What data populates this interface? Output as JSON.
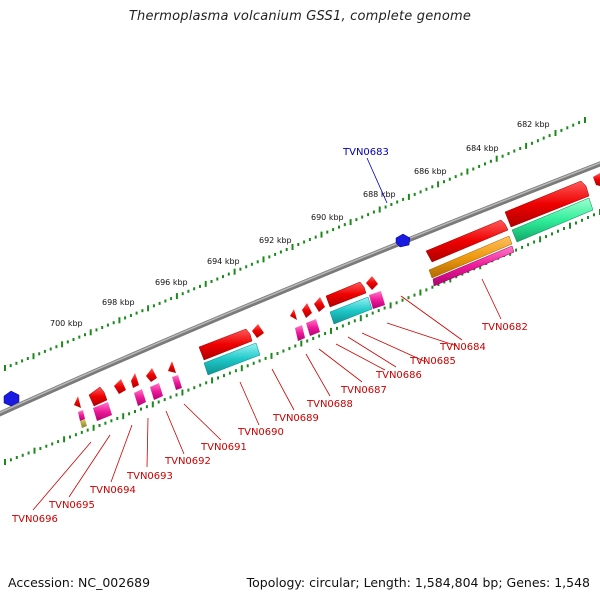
{
  "title": "Thermoplasma volcanium GSS1, complete genome",
  "footer": {
    "accession": "Accession: NC_002689",
    "summary": "Topology: circular; Length: 1,584,804 bp; Genes: 1,548"
  },
  "colors": {
    "backbone": "#7a7a7a",
    "ticks": "#1a8a1a",
    "gene_red": "#ee0000",
    "gene_cyan": "#1fc8c8",
    "gene_magenta": "#ee1a9a",
    "gene_orange": "#ee9a10",
    "gene_green": "#30ee9a",
    "marker_blue": "#1a1ae0",
    "label_red": "#cc0000",
    "label_blue": "#0000bb"
  },
  "kbp_labels": [
    "682 kbp",
    "684 kbp",
    "686 kbp",
    "688 kbp",
    "690 kbp",
    "692 kbp",
    "694 kbp",
    "696 kbp",
    "698 kbp",
    "700 kbp"
  ],
  "gene_labels": [
    "TVN0682",
    "TVN0683",
    "TVN0684",
    "TVN0685",
    "TVN0686",
    "TVN0687",
    "TVN0688",
    "TVN0689",
    "TVN0690",
    "TVN0691",
    "TVN0692",
    "TVN0693",
    "TVN0694",
    "TVN0695",
    "TVN0696"
  ]
}
